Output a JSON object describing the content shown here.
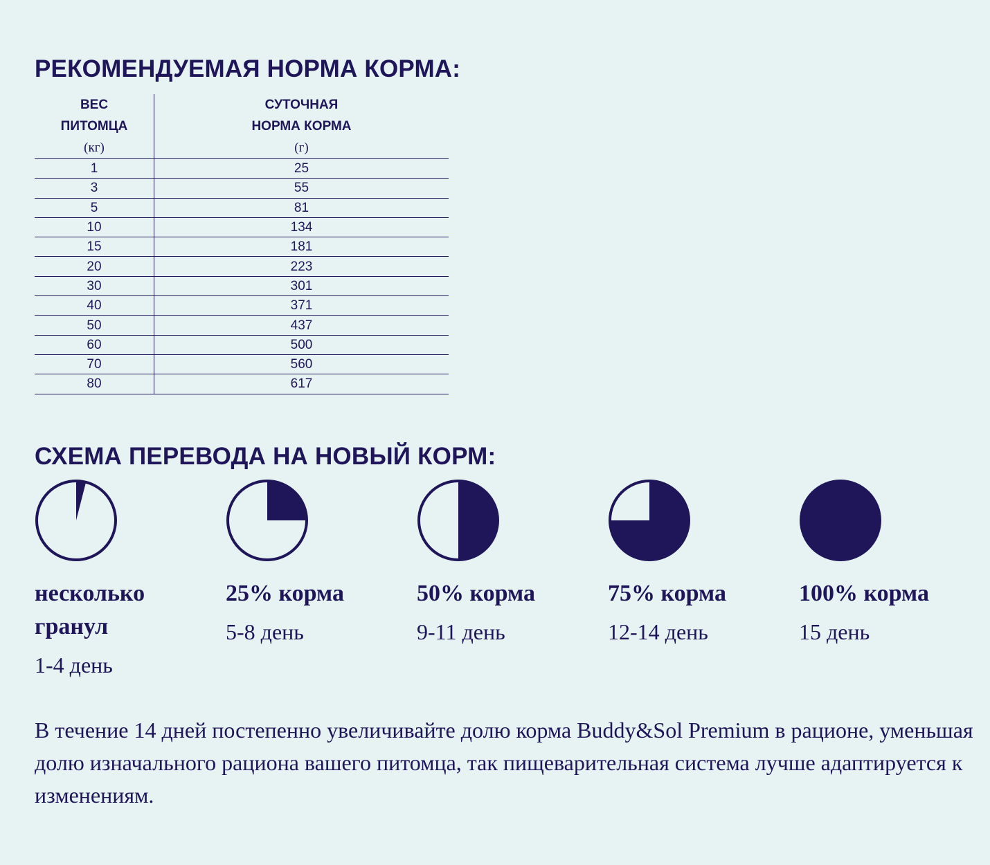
{
  "feeding_title": "РЕКОМЕНДУЕМАЯ НОРМА КОРМА:",
  "table": {
    "col1": {
      "line1": "ВЕС",
      "line2": "ПИТОМЦА",
      "unit": "(кг)"
    },
    "col2": {
      "line1": "СУТОЧНАЯ",
      "line2": "НОРМА КОРМА",
      "unit": "(г)"
    },
    "rows": [
      [
        "1",
        "25"
      ],
      [
        "3",
        "55"
      ],
      [
        "5",
        "81"
      ],
      [
        "10",
        "134"
      ],
      [
        "15",
        "181"
      ],
      [
        "20",
        "223"
      ],
      [
        "30",
        "301"
      ],
      [
        "40",
        "371"
      ],
      [
        "50",
        "437"
      ],
      [
        "60",
        "500"
      ],
      [
        "70",
        "560"
      ],
      [
        "80",
        "617"
      ]
    ]
  },
  "transition_title": "СХЕМА ПЕРЕВОДА НА НОВЫЙ КОРМ:",
  "steps": [
    {
      "label": "несколько гранул",
      "days": "1-4 день",
      "fill_fraction": 0.04
    },
    {
      "label": "25% корма",
      "days": "5-8 день",
      "fill_fraction": 0.25
    },
    {
      "label": "50% корма",
      "days": "9-11 день",
      "fill_fraction": 0.5
    },
    {
      "label": "75% корма",
      "days": "12-14 день",
      "fill_fraction": 0.75
    },
    {
      "label": "100% корма",
      "days": "15 день",
      "fill_fraction": 1.0
    }
  ],
  "description": "В течение 14 дней постепенно увеличивайте долю корма Buddy&Sol Premium в рационе, уменьшая долю изначального рациона вашего питомца, так пищеварительная система лучше адаптируется к изменениям.",
  "colors": {
    "background": "#e7f3f3",
    "navy": "#1f1659"
  }
}
